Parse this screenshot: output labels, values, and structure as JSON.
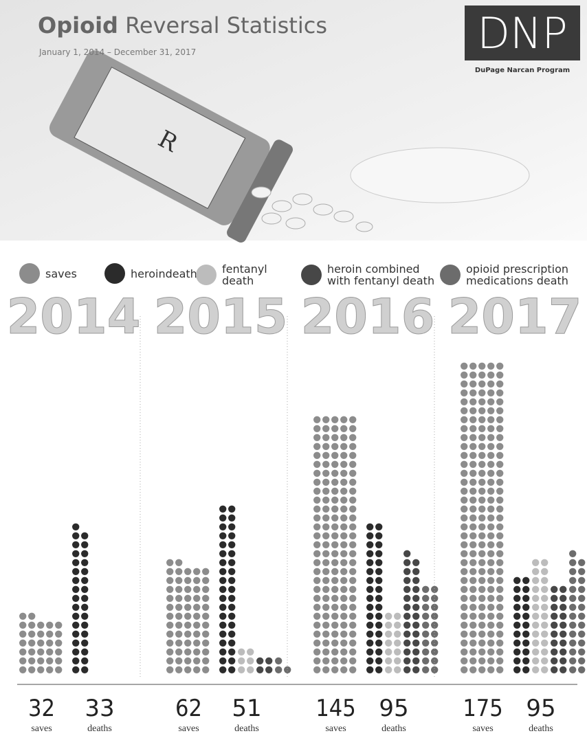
{
  "header": {
    "title_bold": "Opioid",
    "title_rest": "Reversal Statistics",
    "subtitle": "January 1, 2014 – December 31, 2017",
    "logo": "DNP",
    "logo_caption": "DuPage Narcan Program"
  },
  "chart_data": {
    "type": "dot",
    "categories": [
      "2014",
      "2015",
      "2016",
      "2017"
    ],
    "series": [
      {
        "name": "saves",
        "color": "#8c8c8c",
        "values": [
          32,
          62,
          145,
          175
        ]
      },
      {
        "name": "heroindeath",
        "color": "#2b2b2b",
        "values": [
          33,
          38,
          34,
          22
        ]
      },
      {
        "name": "fentanyl death",
        "color": "#bcbcbc",
        "values": [
          0,
          6,
          14,
          26
        ]
      },
      {
        "name": "heroin combined with fentanyl death",
        "color": "#474747",
        "values": [
          0,
          4,
          27,
          20
        ]
      },
      {
        "name": "opioid prescription medications death",
        "color": "#6c6c6c",
        "values": [
          0,
          3,
          20,
          27
        ]
      }
    ],
    "death_totals": [
      33,
      51,
      95,
      95
    ],
    "saves_label": "saves",
    "deaths_label": "deaths"
  }
}
